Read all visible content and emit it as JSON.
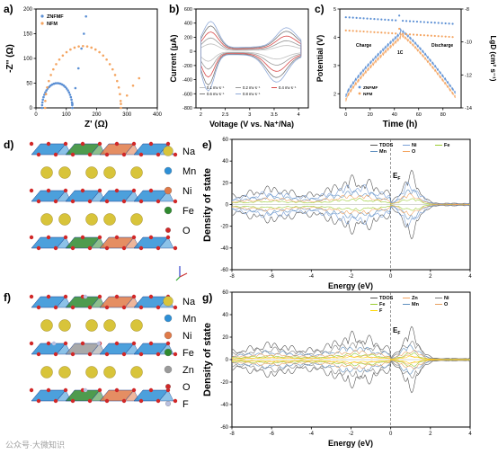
{
  "panels": {
    "a": {
      "label": "a)"
    },
    "b": {
      "label": "b)"
    },
    "c": {
      "label": "c)"
    },
    "d": {
      "label": "d)"
    },
    "e": {
      "label": "e)"
    },
    "f": {
      "label": "f)"
    },
    "g": {
      "label": "g)"
    }
  },
  "legend_d": [
    {
      "name": "Na",
      "color": "#d8c43a"
    },
    {
      "name": "Mn",
      "color": "#2d8fd6"
    },
    {
      "name": "Ni",
      "color": "#e07a48"
    },
    {
      "name": "Fe",
      "color": "#2f8a2f"
    },
    {
      "name": "O",
      "color": "#d12828"
    }
  ],
  "legend_f": [
    {
      "name": "Na",
      "color": "#d8c43a"
    },
    {
      "name": "Mn",
      "color": "#2d8fd6"
    },
    {
      "name": "Ni",
      "color": "#e07a48"
    },
    {
      "name": "Fe",
      "color": "#2f8a2f"
    },
    {
      "name": "Zn",
      "color": "#9a9a9a"
    },
    {
      "name": "O",
      "color": "#d12828"
    },
    {
      "name": "F",
      "color": "#b9c0e0"
    }
  ],
  "watermark": "公众号·大微知识",
  "chart_data": [
    {
      "id": "a",
      "type": "scatter",
      "xlabel": "Z' (Ω)",
      "ylabel": "-Z'' (Ω)",
      "xlim": [
        0,
        400
      ],
      "ylim": [
        0,
        200
      ],
      "xticks": [
        0,
        100,
        200,
        300,
        400
      ],
      "yticks": [
        0,
        50,
        100,
        150,
        200
      ],
      "legend_position": "top-left",
      "series": [
        {
          "name": "ZNFMF",
          "color": "#5b8fd4",
          "arc": {
            "x0": 20,
            "x1": 120,
            "height": 50
          },
          "tail": [
            [
              120,
              8
            ],
            [
              130,
              40
            ],
            [
              140,
              80
            ],
            [
              150,
              120
            ],
            [
              158,
              150
            ],
            [
              165,
              185
            ]
          ]
        },
        {
          "name": "NFM",
          "color": "#f4a460",
          "arc": {
            "x0": 30,
            "x1": 280,
            "height": 125
          },
          "tail": [
            [
              280,
              8
            ],
            [
              300,
              25
            ],
            [
              320,
              45
            ],
            [
              340,
              60
            ]
          ]
        }
      ]
    },
    {
      "id": "b",
      "type": "line",
      "xlabel": "Voltage (V vs. Na⁺/Na)",
      "ylabel": "Current (μA)",
      "xlim": [
        1.9,
        4.2
      ],
      "ylim": [
        -800,
        600
      ],
      "xticks": [
        2.0,
        2.5,
        3.0,
        3.5,
        4.0
      ],
      "yticks": [
        -800,
        -600,
        -400,
        -200,
        0,
        200,
        400,
        600
      ],
      "series": [
        {
          "name": "0.1 mv s⁻¹",
          "color": "#bfbfbf",
          "scale": 0.25
        },
        {
          "name": "0.2 mv s⁻¹",
          "color": "#999999",
          "scale": 0.45
        },
        {
          "name": "0.4 mv s⁻¹",
          "color": "#d94b4b",
          "scale": 0.65
        },
        {
          "name": "0.6 mv s⁻¹",
          "color": "#7a7a7a",
          "scale": 0.85
        },
        {
          "name": "0.8 mv s⁻¹",
          "color": "#8fa9d8",
          "scale": 1.0
        }
      ]
    },
    {
      "id": "c",
      "type": "scatter",
      "xlabel": "Time (h)",
      "ylabel": "Potential (V)",
      "y2label": "LgD (cm² s⁻¹)",
      "xlim": [
        -5,
        95
      ],
      "ylim": [
        1.5,
        5
      ],
      "y2lim": [
        -14,
        -8
      ],
      "xticks": [
        0,
        20,
        40,
        60,
        80
      ],
      "yticks": [
        2,
        3,
        4,
        5
      ],
      "y2ticks": [
        -14,
        -12,
        -10,
        -8
      ],
      "annotations": [
        "Charge",
        "1C",
        "Discharge"
      ],
      "series": [
        {
          "name": "ZNFMF",
          "color": "#5b8fd4",
          "lgd_start": -8.5,
          "lgd_end": -8.9
        },
        {
          "name": "NFM",
          "color": "#f4a460",
          "lgd_start": -9.3,
          "lgd_end": -9.7
        }
      ]
    },
    {
      "id": "e",
      "type": "line",
      "xlabel": "Energy (eV)",
      "ylabel": "Density of state",
      "xlim": [
        -8,
        4
      ],
      "ylim": [
        -60,
        60
      ],
      "xticks": [
        -8,
        -6,
        -4,
        -2,
        0,
        2,
        4
      ],
      "yticks": [
        -60,
        -40,
        -20,
        0,
        20,
        40,
        60
      ],
      "fermi_label": "E",
      "fermi_sub": "F",
      "series": [
        {
          "name": "TDOS",
          "color": "#555555",
          "amp": 28
        },
        {
          "name": "Ni",
          "color": "#7aa0d8",
          "amp": 20
        },
        {
          "name": "Fe",
          "color": "#9acd32",
          "amp": 6
        },
        {
          "name": "Mn",
          "color": "#5f8fbf",
          "amp": 14
        },
        {
          "name": "O",
          "color": "#f4a460",
          "amp": 10
        }
      ]
    },
    {
      "id": "g",
      "type": "line",
      "xlabel": "Energy (eV)",
      "ylabel": "Density of state",
      "xlim": [
        -8,
        4
      ],
      "ylim": [
        -60,
        60
      ],
      "xticks": [
        -8,
        -6,
        -4,
        -2,
        0,
        2,
        4
      ],
      "yticks": [
        -60,
        -40,
        -20,
        0,
        20,
        40,
        60
      ],
      "fermi_label": "E",
      "fermi_sub": "F",
      "series": [
        {
          "name": "TDOS",
          "color": "#555555",
          "amp": 26
        },
        {
          "name": "Zn",
          "color": "#f4a460",
          "amp": 4
        },
        {
          "name": "Ni",
          "color": "#7a7a7a",
          "amp": 18
        },
        {
          "name": "Fe",
          "color": "#9acd32",
          "amp": 6
        },
        {
          "name": "Mn",
          "color": "#5f8fbf",
          "amp": 13
        },
        {
          "name": "O",
          "color": "#e8a060",
          "amp": 9
        },
        {
          "name": "F",
          "color": "#ffd700",
          "amp": 3
        }
      ]
    }
  ]
}
